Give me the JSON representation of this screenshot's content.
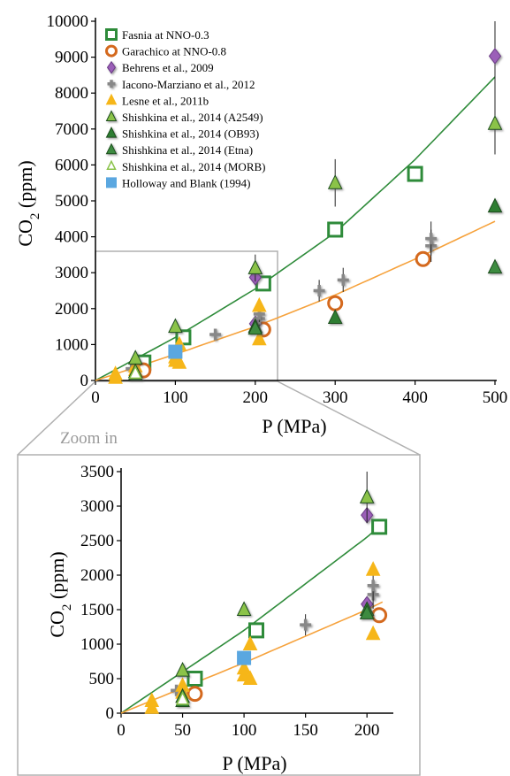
{
  "chart_data": [
    {
      "type": "scatter",
      "panel": "main",
      "xlabel": "P (MPa)",
      "ylabel_main": "CO",
      "ylabel_sub": "2",
      "ylabel_tail": " (ppm)",
      "xlim": [
        0,
        500
      ],
      "ylim": [
        0,
        10000
      ],
      "xticks": [
        "0",
        "100",
        "200",
        "300",
        "400",
        "500"
      ],
      "yticks": [
        "0",
        "1000",
        "2000",
        "3000",
        "4000",
        "5000",
        "6000",
        "7000",
        "8000",
        "9000",
        "10000"
      ],
      "legend_position": "top-left",
      "series": [
        {
          "name": "Fasnia at NNO-0.3",
          "marker": "open-square",
          "color": "#2e8b3a",
          "points": [
            [
              60,
              500
            ],
            [
              110,
              1200
            ],
            [
              210,
              2700
            ],
            [
              300,
              4200
            ],
            [
              400,
              5750
            ]
          ]
        },
        {
          "name": "Garachico at NNO-0.8",
          "marker": "open-circle",
          "color": "#d4691e",
          "points": [
            [
              60,
              280
            ],
            [
              210,
              1420
            ],
            [
              300,
              2150
            ],
            [
              410,
              3380
            ]
          ]
        },
        {
          "name": "Behrens et al., 2009",
          "marker": "diamond",
          "color": "#9b5fb8",
          "points": [
            [
              200,
              2870
            ],
            [
              200,
              1580
            ],
            [
              500,
              9030
            ]
          ]
        },
        {
          "name": "Iacono-Marziano et al., 2012",
          "marker": "plus",
          "color": "#888888",
          "points": [
            [
              45,
              330
            ],
            [
              150,
              1280
            ],
            [
              205,
              1720
            ],
            [
              205,
              1850
            ],
            [
              280,
              2500
            ],
            [
              310,
              2800
            ],
            [
              420,
              3750
            ],
            [
              420,
              3950
            ]
          ]
        },
        {
          "name": "Lesne et al., 2011b",
          "marker": "triangle",
          "color": "#f6b619",
          "points": [
            [
              25,
              80
            ],
            [
              25,
              180
            ],
            [
              50,
              300
            ],
            [
              50,
              400
            ],
            [
              100,
              550
            ],
            [
              100,
              650
            ],
            [
              105,
              500
            ],
            [
              105,
              1000
            ],
            [
              205,
              1150
            ],
            [
              205,
              2080
            ]
          ]
        },
        {
          "name": "Shishkina et al., 2014 (A2549)",
          "marker": "triangle",
          "color": "#8bc34a",
          "points": [
            [
              50,
              620
            ],
            [
              100,
              1500
            ],
            [
              200,
              3130
            ],
            [
              300,
              5500
            ],
            [
              500,
              7150
            ]
          ]
        },
        {
          "name": "Shishkina et al., 2014 (OB93)",
          "marker": "triangle",
          "color": "#2e7d32",
          "points": [
            [
              50,
              180
            ],
            [
              200,
              1500
            ],
            [
              300,
              1750
            ],
            [
              500,
              4850
            ]
          ]
        },
        {
          "name": "Shishkina et al., 2014 (Etna)",
          "marker": "triangle",
          "color": "#3d8b40",
          "points": [
            [
              50,
              240
            ],
            [
              200,
              1450
            ],
            [
              500,
              3150
            ]
          ]
        },
        {
          "name": "Shishkina et al., 2014 (MORB)",
          "marker": "triangle-open",
          "color": "#8bc34a",
          "points": [
            [
              50,
              200
            ]
          ]
        },
        {
          "name": "Holloway and Blank (1994)",
          "marker": "square",
          "color": "#5aa7e0",
          "points": [
            [
              100,
              800
            ]
          ]
        }
      ],
      "fits": [
        {
          "color": "#2e8b3a",
          "points": [
            [
              0,
              0
            ],
            [
              100,
              1200
            ],
            [
              200,
              2550
            ],
            [
              300,
              4120
            ],
            [
              400,
              6150
            ],
            [
              500,
              8450
            ]
          ]
        },
        {
          "color": "#f6a23c",
          "points": [
            [
              0,
              0
            ],
            [
              100,
              730
            ],
            [
              200,
              1500
            ],
            [
              300,
              2380
            ],
            [
              400,
              3380
            ],
            [
              500,
              4430
            ]
          ]
        }
      ]
    },
    {
      "type": "scatter",
      "panel": "zoom",
      "title": "Zoom in",
      "xlabel": "P (MPa)",
      "ylabel_main": "CO",
      "ylabel_sub": "2",
      "ylabel_tail": " (ppm)",
      "xlim": [
        0,
        220
      ],
      "ylim": [
        0,
        3500
      ],
      "xticks": [
        "0",
        "50",
        "100",
        "150",
        "200"
      ],
      "yticks": [
        "0",
        "500",
        "1000",
        "1500",
        "2000",
        "2500",
        "3000",
        "3500"
      ]
    }
  ]
}
